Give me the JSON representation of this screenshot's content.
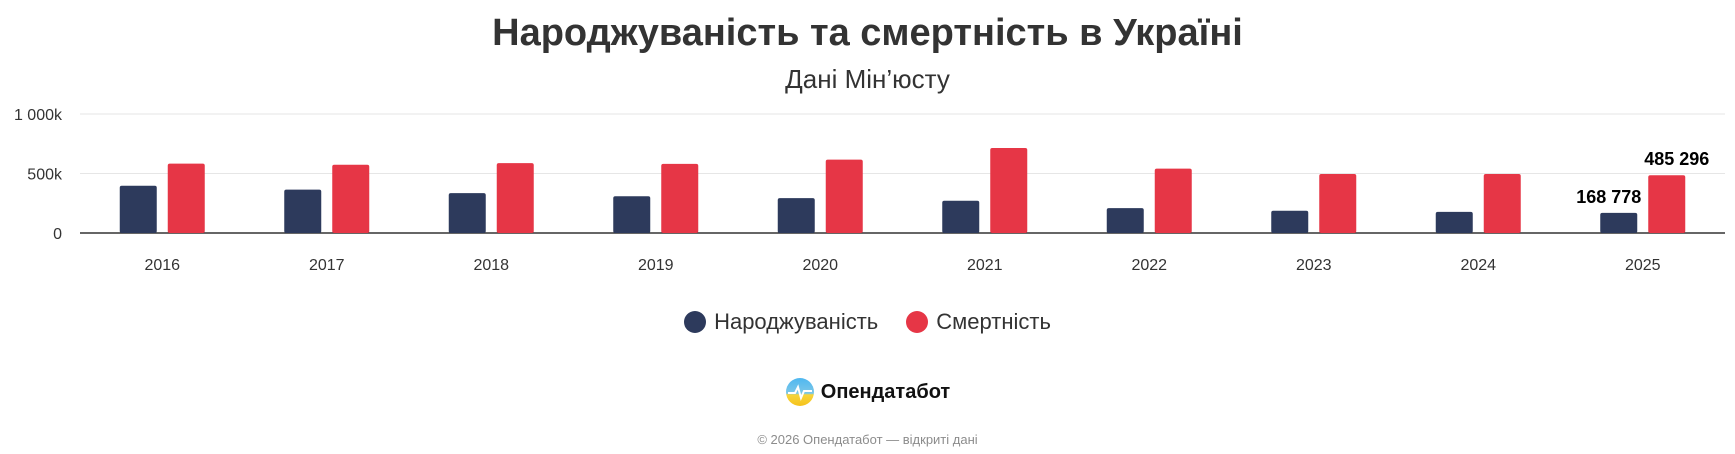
{
  "chart_data": {
    "type": "bar",
    "title": "Народжуваність та смертність в Україні",
    "subtitle": "Дані Мін’юсту",
    "categories": [
      "2016",
      "2017",
      "2018",
      "2019",
      "2020",
      "2021",
      "2022",
      "2023",
      "2024",
      "2025"
    ],
    "series": [
      {
        "name": "Народжуваність",
        "color": "#2d3a5c",
        "values": [
          397000,
          364000,
          335000,
          309000,
          293000,
          271000,
          209000,
          187000,
          177000,
          168778
        ]
      },
      {
        "name": "Смертність",
        "color": "#e63646",
        "values": [
          583000,
          574000,
          587000,
          581000,
          617000,
          714000,
          541000,
          496000,
          496000,
          485296
        ]
      }
    ],
    "data_labels": [
      {
        "series": 0,
        "category": "2025",
        "text": "168 778"
      },
      {
        "series": 1,
        "category": "2025",
        "text": "485 296"
      }
    ],
    "ylim": [
      0,
      1000000
    ],
    "yticks": [
      0,
      500000,
      1000000
    ],
    "ytick_labels": [
      "0",
      "500k",
      "1 000k"
    ],
    "xlabel": "",
    "ylabel": "",
    "grid": true,
    "legend": "bottom-center"
  },
  "brand": {
    "name": "Опендатабот"
  },
  "footer": {
    "text": "© 2026 Опендатабот — відкриті дані"
  }
}
